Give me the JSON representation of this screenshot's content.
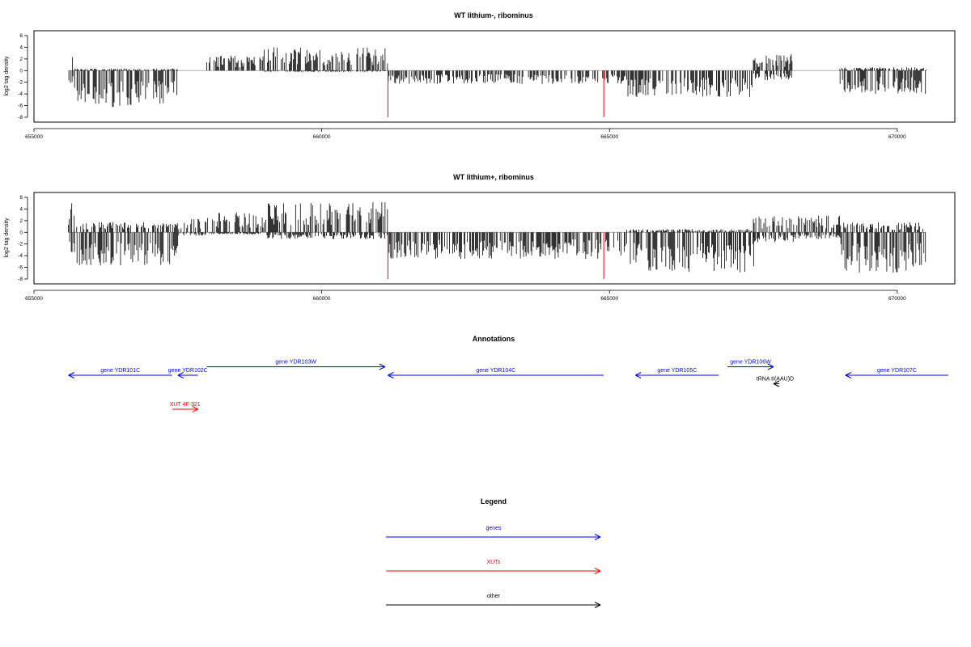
{
  "chart_data": [
    {
      "type": "bar",
      "title": "WT lithium-, ribominus",
      "ylabel": "log2 tag density",
      "xlim": [
        655000,
        671000
      ],
      "ylim": [
        -8,
        6
      ],
      "xticks": [
        655000,
        660000,
        665000,
        670000
      ],
      "yticks": [
        -8,
        -6,
        -4,
        -2,
        0,
        2,
        4,
        6
      ],
      "xtick_labels": [
        "655000",
        "660000",
        "665000",
        "670000"
      ],
      "ytick_labels": [
        "-8",
        "-6",
        "-4",
        "-2",
        "0",
        "2",
        "4",
        "6"
      ],
      "baseline": 0,
      "data_range": [
        655600,
        670500
      ],
      "red_markers": [
        661150,
        664900
      ],
      "profile": [
        {
          "from": 655600,
          "to": 655700,
          "pos": 3.0,
          "neg": -2.0
        },
        {
          "from": 655700,
          "to": 657500,
          "pos": 0.3,
          "neg": -5.5
        },
        {
          "from": 657500,
          "to": 658000,
          "pos": 0.0,
          "neg": 0.0
        },
        {
          "from": 658000,
          "to": 659000,
          "pos": 2.3,
          "neg": 0.0
        },
        {
          "from": 659000,
          "to": 661150,
          "pos": 3.5,
          "neg": -0.2
        },
        {
          "from": 661150,
          "to": 665300,
          "pos": 0.0,
          "neg": -2.0
        },
        {
          "from": 665300,
          "to": 667500,
          "pos": 0.0,
          "neg": -4.0
        },
        {
          "from": 667500,
          "to": 668200,
          "pos": 2.5,
          "neg": -1.5
        },
        {
          "from": 668200,
          "to": 669000,
          "pos": 0.0,
          "neg": 0.0
        },
        {
          "from": 669000,
          "to": 670500,
          "pos": 0.5,
          "neg": -3.5
        }
      ]
    },
    {
      "type": "bar",
      "title": "WT lithium+, ribominus",
      "ylabel": "log2 tag density",
      "xlim": [
        655000,
        671000
      ],
      "ylim": [
        -8,
        6
      ],
      "xticks": [
        655000,
        660000,
        665000,
        670000
      ],
      "yticks": [
        -8,
        -6,
        -4,
        -2,
        0,
        2,
        4,
        6
      ],
      "xtick_labels": [
        "655000",
        "660000",
        "665000",
        "670000"
      ],
      "ytick_labels": [
        "-8",
        "-6",
        "-4",
        "-2",
        "0",
        "2",
        "4",
        "6"
      ],
      "baseline": 0,
      "data_range": [
        655600,
        670500
      ],
      "red_markers": [
        661150,
        664900
      ],
      "profile": [
        {
          "from": 655600,
          "to": 655700,
          "pos": 5.0,
          "neg": -3.0
        },
        {
          "from": 655700,
          "to": 657500,
          "pos": 1.5,
          "neg": -5.0
        },
        {
          "from": 657500,
          "to": 658000,
          "pos": 2.0,
          "neg": -0.5
        },
        {
          "from": 658000,
          "to": 659000,
          "pos": 3.0,
          "neg": -0.3
        },
        {
          "from": 659000,
          "to": 661150,
          "pos": 4.5,
          "neg": -1.0
        },
        {
          "from": 661150,
          "to": 665300,
          "pos": 0.0,
          "neg": -4.0
        },
        {
          "from": 665300,
          "to": 667500,
          "pos": 0.5,
          "neg": -6.0
        },
        {
          "from": 667500,
          "to": 668200,
          "pos": 2.5,
          "neg": -1.5
        },
        {
          "from": 668200,
          "to": 669000,
          "pos": 2.5,
          "neg": -1.0
        },
        {
          "from": 669000,
          "to": 670500,
          "pos": 1.5,
          "neg": -6.0
        }
      ]
    }
  ],
  "annotations": {
    "title": "Annotations",
    "features": [
      {
        "label": "gene YDR101C",
        "kind": "genes",
        "start": 655600,
        "end": 657400,
        "strand": "-",
        "row": 2
      },
      {
        "label": "gene YDR102C",
        "kind": "genes",
        "start": 657500,
        "end": 657850,
        "strand": "-",
        "row": 2
      },
      {
        "label": "gene YDR103W",
        "kind": "genes",
        "start": 658000,
        "end": 661100,
        "strand": "+",
        "row": 1
      },
      {
        "label": "gene YDR104C",
        "kind": "genes",
        "start": 661150,
        "end": 664900,
        "strand": "-",
        "row": 2
      },
      {
        "label": "gene YDR105C",
        "kind": "genes",
        "start": 665450,
        "end": 666900,
        "strand": "-",
        "row": 2
      },
      {
        "label": "gene YDR106W",
        "kind": "genes",
        "start": 667050,
        "end": 667850,
        "strand": "+",
        "row": 1
      },
      {
        "label": "gene YDR107C",
        "kind": "genes",
        "start": 669100,
        "end": 671000,
        "strand": "-",
        "row": 2
      },
      {
        "label": "tRNA tI(AAU)D",
        "kind": "other",
        "start": 667850,
        "end": 667950,
        "strand": "-",
        "row": 3
      },
      {
        "label": "XUT 4F-321",
        "kind": "XUTs",
        "start": 657400,
        "end": 657850,
        "strand": "+",
        "row": 6
      }
    ]
  },
  "legend": {
    "title": "Legend",
    "entries": [
      {
        "label": "genes",
        "color": "#0000ff"
      },
      {
        "label": "XUTs",
        "color": "#ff0000"
      },
      {
        "label": "other",
        "color": "#000000"
      }
    ]
  },
  "colors": {
    "genes": "#0000ff",
    "XUTs": "#ff0000",
    "other": "#000000",
    "marker": "#ff0000",
    "baseline": "#999999"
  }
}
